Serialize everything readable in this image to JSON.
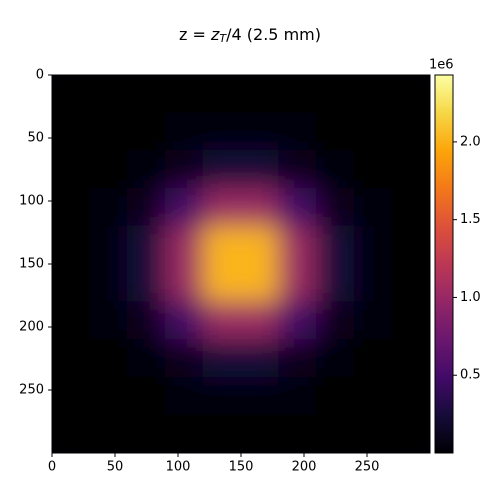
{
  "chart_data": {
    "type": "heatmap",
    "title_parts": {
      "prefix": "z = ",
      "symbol": "z",
      "subscript": "T",
      "suffix": "/4  (2.5 mm)"
    },
    "x": [
      15,
      45,
      75,
      105,
      135,
      165,
      195,
      225,
      255,
      285
    ],
    "y": [
      15,
      45,
      75,
      105,
      135,
      165,
      195,
      225,
      255,
      285
    ],
    "values": [
      [
        2,
        30,
        241,
        967,
        1937,
        1937,
        967,
        241,
        30,
        2
      ],
      [
        30,
        484,
        3885,
        15609,
        31251,
        31251,
        15609,
        3885,
        484,
        30
      ],
      [
        241,
        3885,
        31190,
        125309,
        250891,
        250891,
        125309,
        31190,
        3885,
        241
      ],
      [
        967,
        15609,
        125309,
        503434,
        1007966,
        1007966,
        503434,
        125309,
        15609,
        967
      ],
      [
        1937,
        31251,
        250891,
        1007966,
        2018134,
        2018134,
        1007966,
        250891,
        31251,
        1937
      ],
      [
        1937,
        31251,
        250891,
        1007966,
        2018134,
        2018134,
        1007966,
        250891,
        31251,
        1937
      ],
      [
        967,
        15609,
        125309,
        503434,
        1007966,
        1007966,
        503434,
        125309,
        15609,
        967
      ],
      [
        241,
        3885,
        31190,
        125309,
        250891,
        250891,
        125309,
        31190,
        3885,
        241
      ],
      [
        30,
        484,
        3885,
        15609,
        31251,
        31251,
        15609,
        3885,
        484,
        30
      ],
      [
        2,
        30,
        241,
        967,
        1937,
        1937,
        967,
        241,
        30,
        2
      ]
    ],
    "colormap": "inferno",
    "xlim": [
      0,
      300
    ],
    "ylim": [
      0,
      300
    ],
    "y_inverted": true,
    "xticks": [
      0,
      50,
      100,
      150,
      200,
      250
    ],
    "yticks": [
      0,
      50,
      100,
      150,
      200,
      250
    ],
    "zlim": [
      0,
      2430000
    ],
    "zticks": [
      {
        "value": 500000,
        "label": "0.5"
      },
      {
        "value": 1000000,
        "label": "1.0"
      },
      {
        "value": 1500000,
        "label": "1.5"
      },
      {
        "value": 2000000,
        "label": "2.0"
      }
    ],
    "z_offset_label": "1e6"
  }
}
